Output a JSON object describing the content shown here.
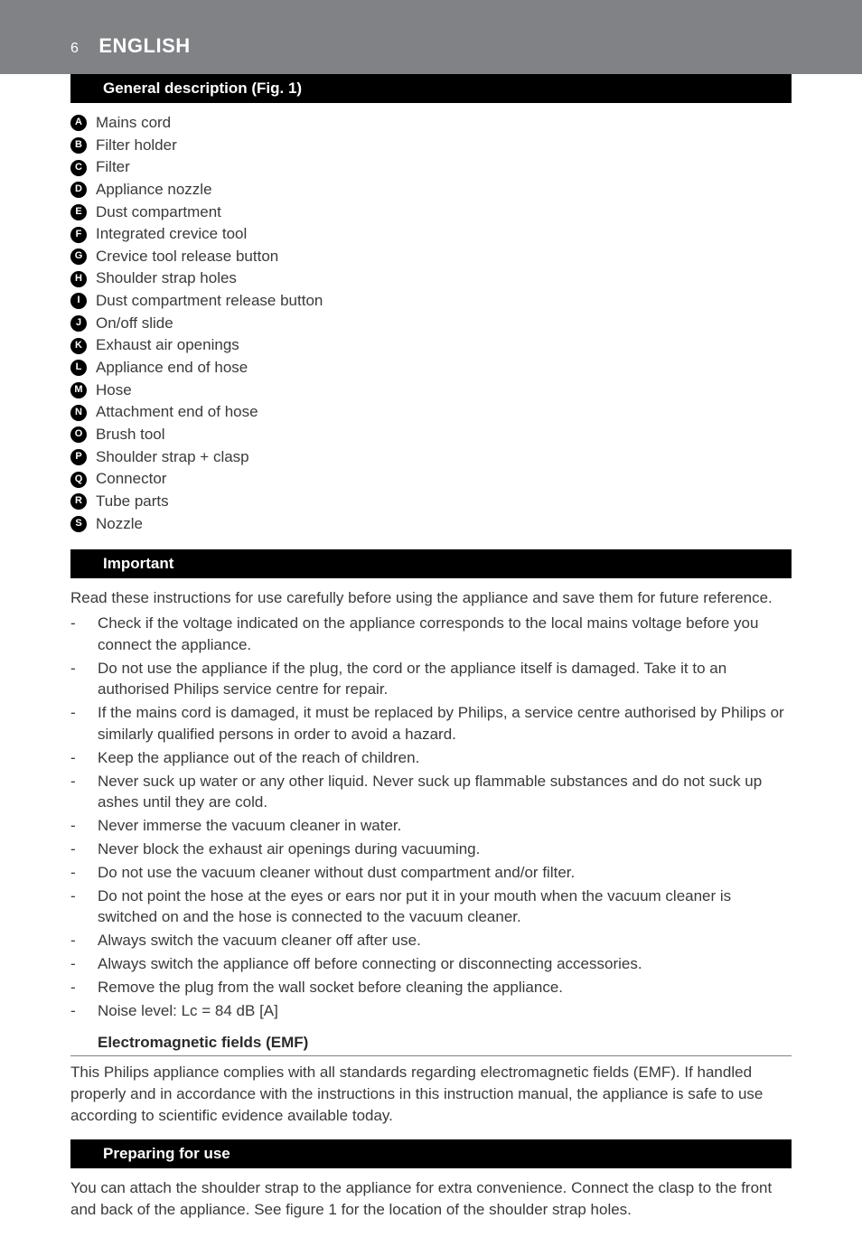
{
  "header": {
    "page_number": "6",
    "language": "ENGLISH"
  },
  "sections": {
    "general_description": {
      "title": "General description (Fig. 1)",
      "items": [
        {
          "letter": "A",
          "text": "Mains cord"
        },
        {
          "letter": "B",
          "text": "Filter holder"
        },
        {
          "letter": "C",
          "text": "Filter"
        },
        {
          "letter": "D",
          "text": "Appliance nozzle"
        },
        {
          "letter": "E",
          "text": "Dust compartment"
        },
        {
          "letter": "F",
          "text": "Integrated crevice tool"
        },
        {
          "letter": "G",
          "text": "Crevice tool release button"
        },
        {
          "letter": "H",
          "text": "Shoulder strap holes"
        },
        {
          "letter": "I",
          "text": "Dust compartment release button"
        },
        {
          "letter": "J",
          "text": "On/off slide"
        },
        {
          "letter": "K",
          "text": "Exhaust air openings"
        },
        {
          "letter": "L",
          "text": "Appliance end of hose"
        },
        {
          "letter": "M",
          "text": "Hose"
        },
        {
          "letter": "N",
          "text": "Attachment end of hose"
        },
        {
          "letter": "O",
          "text": "Brush tool"
        },
        {
          "letter": "P",
          "text": "Shoulder strap + clasp"
        },
        {
          "letter": "Q",
          "text": "Connector"
        },
        {
          "letter": "R",
          "text": "Tube parts"
        },
        {
          "letter": "S",
          "text": "Nozzle"
        }
      ]
    },
    "important": {
      "title": "Important",
      "intro": "Read these instructions for use carefully before using the appliance and save them for future reference.",
      "bullets": [
        "Check if the voltage indicated on the appliance corresponds to the local mains voltage before you connect the appliance.",
        "Do not use the appliance if the plug, the cord or the appliance itself is damaged. Take it to an authorised Philips service centre for repair.",
        "If the mains cord is damaged, it must be replaced by Philips, a service centre authorised by Philips or similarly qualified persons in order to avoid a hazard.",
        "Keep the appliance out of the reach of children.",
        "Never suck up water or any other liquid. Never suck up flammable substances and do not suck up ashes until they are cold.",
        "Never immerse the vacuum cleaner in water.",
        "Never block the exhaust air openings during vacuuming.",
        "Do not use the vacuum cleaner without dust compartment and/or filter.",
        "Do not point the hose at the eyes or ears nor put it in your mouth when the vacuum cleaner is switched on and the hose is connected to the vacuum cleaner.",
        "Always switch the vacuum cleaner off after use.",
        "Always switch the appliance off before connecting or disconnecting accessories.",
        "Remove the plug from the wall socket before cleaning the appliance.",
        "Noise level: Lc = 84 dB [A]"
      ]
    },
    "emf": {
      "title": "Electromagnetic fields (EMF)",
      "body": "This Philips appliance complies with all standards regarding electromagnetic fields (EMF). If handled properly and in accordance with the instructions in this instruction manual, the appliance is safe to use according to scientific evidence available today."
    },
    "preparing": {
      "title": "Preparing for use",
      "body": "You can attach the shoulder strap to the appliance for extra convenience. Connect the clasp to the front and back of the appliance. See figure 1 for the location of the shoulder strap holes."
    }
  },
  "colors": {
    "header_band": "#808285",
    "section_bar": "#000000",
    "text": "#3a3a3a",
    "bullet_bg": "#000000"
  },
  "typography": {
    "body_fontsize": 17,
    "lang_title_fontsize": 22,
    "bullet_letter_fontsize": 11
  }
}
